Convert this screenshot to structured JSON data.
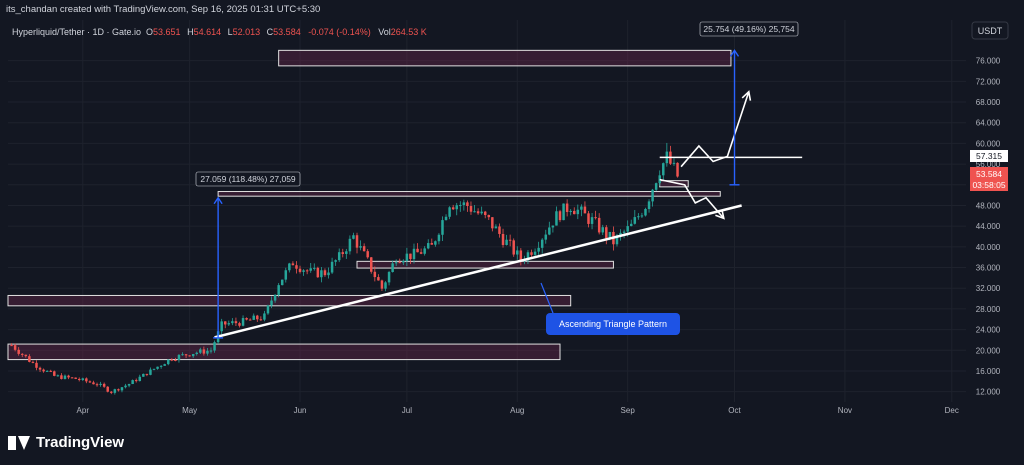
{
  "header": {
    "credit": "its_chandan created with TradingView.com, Sep 16, 2025 01:31 UTC+5:30"
  },
  "symbol_bar": {
    "symbol": "Hyperliquid/Tether · 1D · Gate.io",
    "o_label": "O",
    "o_value": "53.651",
    "h_label": "H",
    "h_value": "54.614",
    "l_label": "L",
    "l_value": "52.013",
    "c_label": "C",
    "c_value": "53.584",
    "change": "-0.074 (-0.14%)",
    "vol_label": "Vol",
    "vol_value": "264.53 K"
  },
  "currency_button": "USDT",
  "price_tags": {
    "level": "57.315",
    "last": "53.584",
    "countdown": "03:58:05"
  },
  "measure_labels": {
    "upper": "25.754 (49.16%) 25,754",
    "lower": "27.059 (118.48%) 27,059"
  },
  "annotation": "Ascending Triangle Pattern",
  "footer": {
    "brand": "TradingView"
  },
  "colors": {
    "up": "#26a69a",
    "down": "#ef5350",
    "background": "#131722",
    "zone": "#4a1f38",
    "annotation": "#2962ff",
    "measure": "#2962ff"
  },
  "chart_data": {
    "type": "candlestick",
    "x_ticks": [
      "Apr",
      "May",
      "Jun",
      "Jul",
      "Aug",
      "Sep",
      "Oct",
      "Nov",
      "Dec"
    ],
    "y_ticks": [
      "12.000",
      "16.000",
      "20.000",
      "24.000",
      "28.000",
      "32.000",
      "36.000",
      "40.000",
      "44.000",
      "48.000",
      "52.000",
      "56.000",
      "60.000",
      "64.000",
      "68.000",
      "72.000",
      "76.000"
    ],
    "ylim": [
      10,
      80
    ],
    "close_path": [
      [
        "2025-03-12",
        21.0
      ],
      [
        "2025-03-18",
        17.5
      ],
      [
        "2025-03-24",
        15.0
      ],
      [
        "2025-03-30",
        14.5
      ],
      [
        "2025-04-05",
        13.5
      ],
      [
        "2025-04-09",
        12.0
      ],
      [
        "2025-04-14",
        13.5
      ],
      [
        "2025-04-20",
        16.0
      ],
      [
        "2025-04-26",
        18.5
      ],
      [
        "2025-05-02",
        19.5
      ],
      [
        "2025-05-07",
        20.0
      ],
      [
        "2025-05-10",
        25.0
      ],
      [
        "2025-05-16",
        25.5
      ],
      [
        "2025-05-22",
        26.5
      ],
      [
        "2025-05-26",
        33.0
      ],
      [
        "2025-05-30",
        37.0
      ],
      [
        "2025-06-04",
        35.0
      ],
      [
        "2025-06-08",
        35.0
      ],
      [
        "2025-06-12",
        38.0
      ],
      [
        "2025-06-16",
        42.0
      ],
      [
        "2025-06-20",
        37.0
      ],
      [
        "2025-06-24",
        32.0
      ],
      [
        "2025-06-28",
        38.0
      ],
      [
        "2025-07-03",
        38.5
      ],
      [
        "2025-07-08",
        40.0
      ],
      [
        "2025-07-13",
        48.5
      ],
      [
        "2025-07-18",
        48.0
      ],
      [
        "2025-07-24",
        45.0
      ],
      [
        "2025-07-30",
        40.0
      ],
      [
        "2025-08-02",
        37.5
      ],
      [
        "2025-08-06",
        40.0
      ],
      [
        "2025-08-12",
        46.0
      ],
      [
        "2025-08-16",
        48.0
      ],
      [
        "2025-08-22",
        45.0
      ],
      [
        "2025-08-28",
        41.0
      ],
      [
        "2025-09-02",
        44.0
      ],
      [
        "2025-09-06",
        48.0
      ],
      [
        "2025-09-10",
        55.0
      ],
      [
        "2025-09-12",
        57.3
      ],
      [
        "2025-09-15",
        53.6
      ]
    ],
    "zones": [
      {
        "from": "2025-05-26",
        "to": "2025-09-30",
        "low": 75.0,
        "high": 78.0
      },
      {
        "from": "2025-03-11",
        "to": "2025-08-16",
        "low": 28.6,
        "high": 30.6
      },
      {
        "from": "2025-03-11",
        "to": "2025-08-13",
        "low": 18.2,
        "high": 21.2
      },
      {
        "from": "2025-06-17",
        "to": "2025-08-28",
        "low": 35.9,
        "high": 37.2
      },
      {
        "from": "2025-05-09",
        "to": "2025-09-27",
        "low": 49.8,
        "high": 50.7
      },
      {
        "from": "2025-09-10",
        "to": "2025-09-18",
        "low": 51.6,
        "high": 52.8
      }
    ],
    "trendline": {
      "from": [
        "2025-05-08",
        22.5
      ],
      "to": [
        "2025-10-03",
        48.0
      ]
    },
    "resistance": {
      "from": [
        "2025-09-10",
        57.3
      ],
      "to": [
        "2025-10-20",
        57.3
      ]
    },
    "projection_path": [
      [
        "2025-09-10",
        53.0
      ],
      [
        "2025-09-17",
        52.0
      ],
      [
        "2025-09-20",
        48.5
      ],
      [
        "2025-09-23",
        49.5
      ],
      [
        "2025-09-28",
        45.5
      ]
    ],
    "breakout_path": [
      [
        "2025-09-16",
        55.5
      ],
      [
        "2025-09-21",
        59.5
      ],
      [
        "2025-09-25",
        56.5
      ],
      [
        "2025-09-29",
        57.5
      ],
      [
        "2025-10-05",
        70.0
      ]
    ],
    "measures": [
      {
        "x": "2025-10-01",
        "from": 52.0,
        "to": 78.0
      },
      {
        "x": "2025-05-09",
        "from": 22.4,
        "to": 49.5
      }
    ]
  }
}
